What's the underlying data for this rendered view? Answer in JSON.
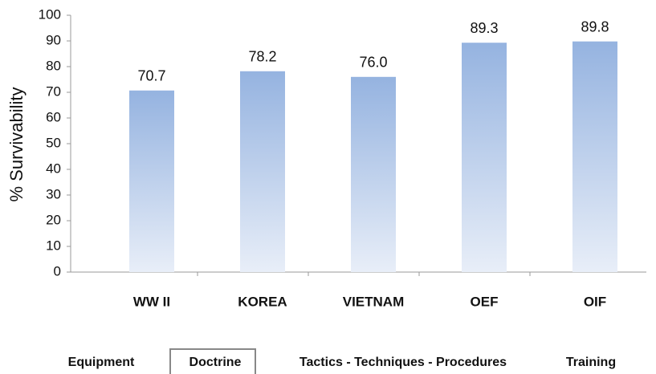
{
  "chart_data": {
    "type": "bar",
    "y_label": "% Survivability",
    "categories": [
      "WW II",
      "KOREA",
      "VIETNAM",
      "OEF",
      "OIF"
    ],
    "values": [
      70.7,
      78.2,
      76.0,
      89.3,
      89.8
    ],
    "value_labels": [
      "70.7",
      "78.2",
      "76.0",
      "89.3",
      "89.8"
    ],
    "color": "#95b3e0",
    "ylim": [
      0,
      100
    ],
    "yticks": [
      0,
      10,
      20,
      30,
      40,
      50,
      60,
      70,
      80,
      90,
      100
    ],
    "grid": false
  },
  "tabs": [
    "Equipment",
    "Doctrine",
    "Tactics - Techniques - Procedures",
    "Training"
  ],
  "selected_tab": 1
}
